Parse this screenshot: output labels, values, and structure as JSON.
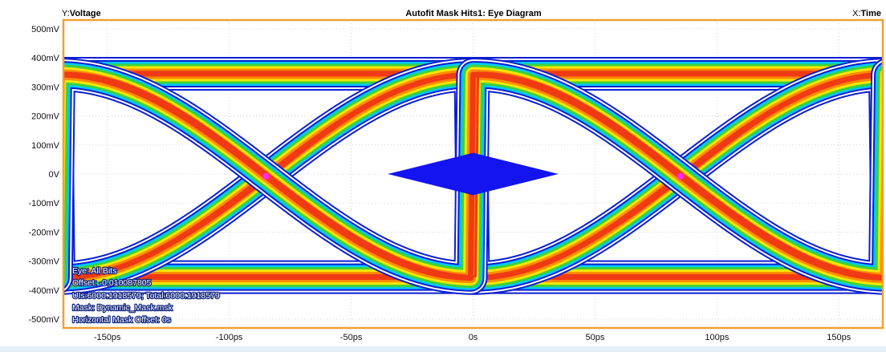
{
  "header": {
    "y_prefix": "Y:",
    "y_name": "Voltage",
    "title": "Autofit Mask Hits1: Eye Diagram",
    "x_prefix": "X:",
    "x_name": "Time"
  },
  "info": {
    "line1": "Eye: All Bits",
    "line2": "Offset: -0.010087805",
    "line3": "UIs:6000.1918579; Total:6000.1918579",
    "line4": "Mask: Dynamic_Mask.msk",
    "line5": "Horizontal Mask Offset: 0s"
  },
  "colors": {
    "frame": "#f0a030",
    "contour_outer": "#0a1ed2",
    "contour_mid": "#00c8ff",
    "contour_green": "#3cd23c",
    "contour_yellow": "#f5e600",
    "contour_orange": "#ff8c00",
    "contour_red": "#f03a14",
    "mask": "#1414f0",
    "crossing_marker": "#ff28ff"
  },
  "chart_data": {
    "type": "eye-diagram",
    "title": "Autofit Mask Hits1: Eye Diagram",
    "xlabel": "Time",
    "ylabel": "Voltage",
    "x_unit": "ps",
    "y_unit": "mV",
    "xlim": [
      -168,
      168
    ],
    "ylim": [
      -530,
      530
    ],
    "x_ticks": [
      -150,
      -100,
      -50,
      0,
      50,
      100,
      150
    ],
    "x_tick_labels": [
      "-150ps",
      "-100ps",
      "-50ps",
      "0s",
      "50ps",
      "100ps",
      "150ps"
    ],
    "y_ticks": [
      500,
      400,
      300,
      200,
      100,
      0,
      -100,
      -200,
      -300,
      -400,
      -500
    ],
    "y_tick_labels": [
      "500mV",
      "400mV",
      "300mV",
      "200mV",
      "100mV",
      "0V",
      "-100mV",
      "-200mV",
      "-300mV",
      "-400mV",
      "-500mV"
    ],
    "grid": true,
    "ui_period_ps": 170,
    "crossing_points_ps": [
      -85,
      85
    ],
    "crossing_level_mV": -8,
    "logic_high_mV": 345,
    "logic_low_mV": -355,
    "mask": {
      "center_ps": 0,
      "center_mV": 0,
      "half_width_ps": 35,
      "half_height_mV": 73
    },
    "legend": "none"
  }
}
